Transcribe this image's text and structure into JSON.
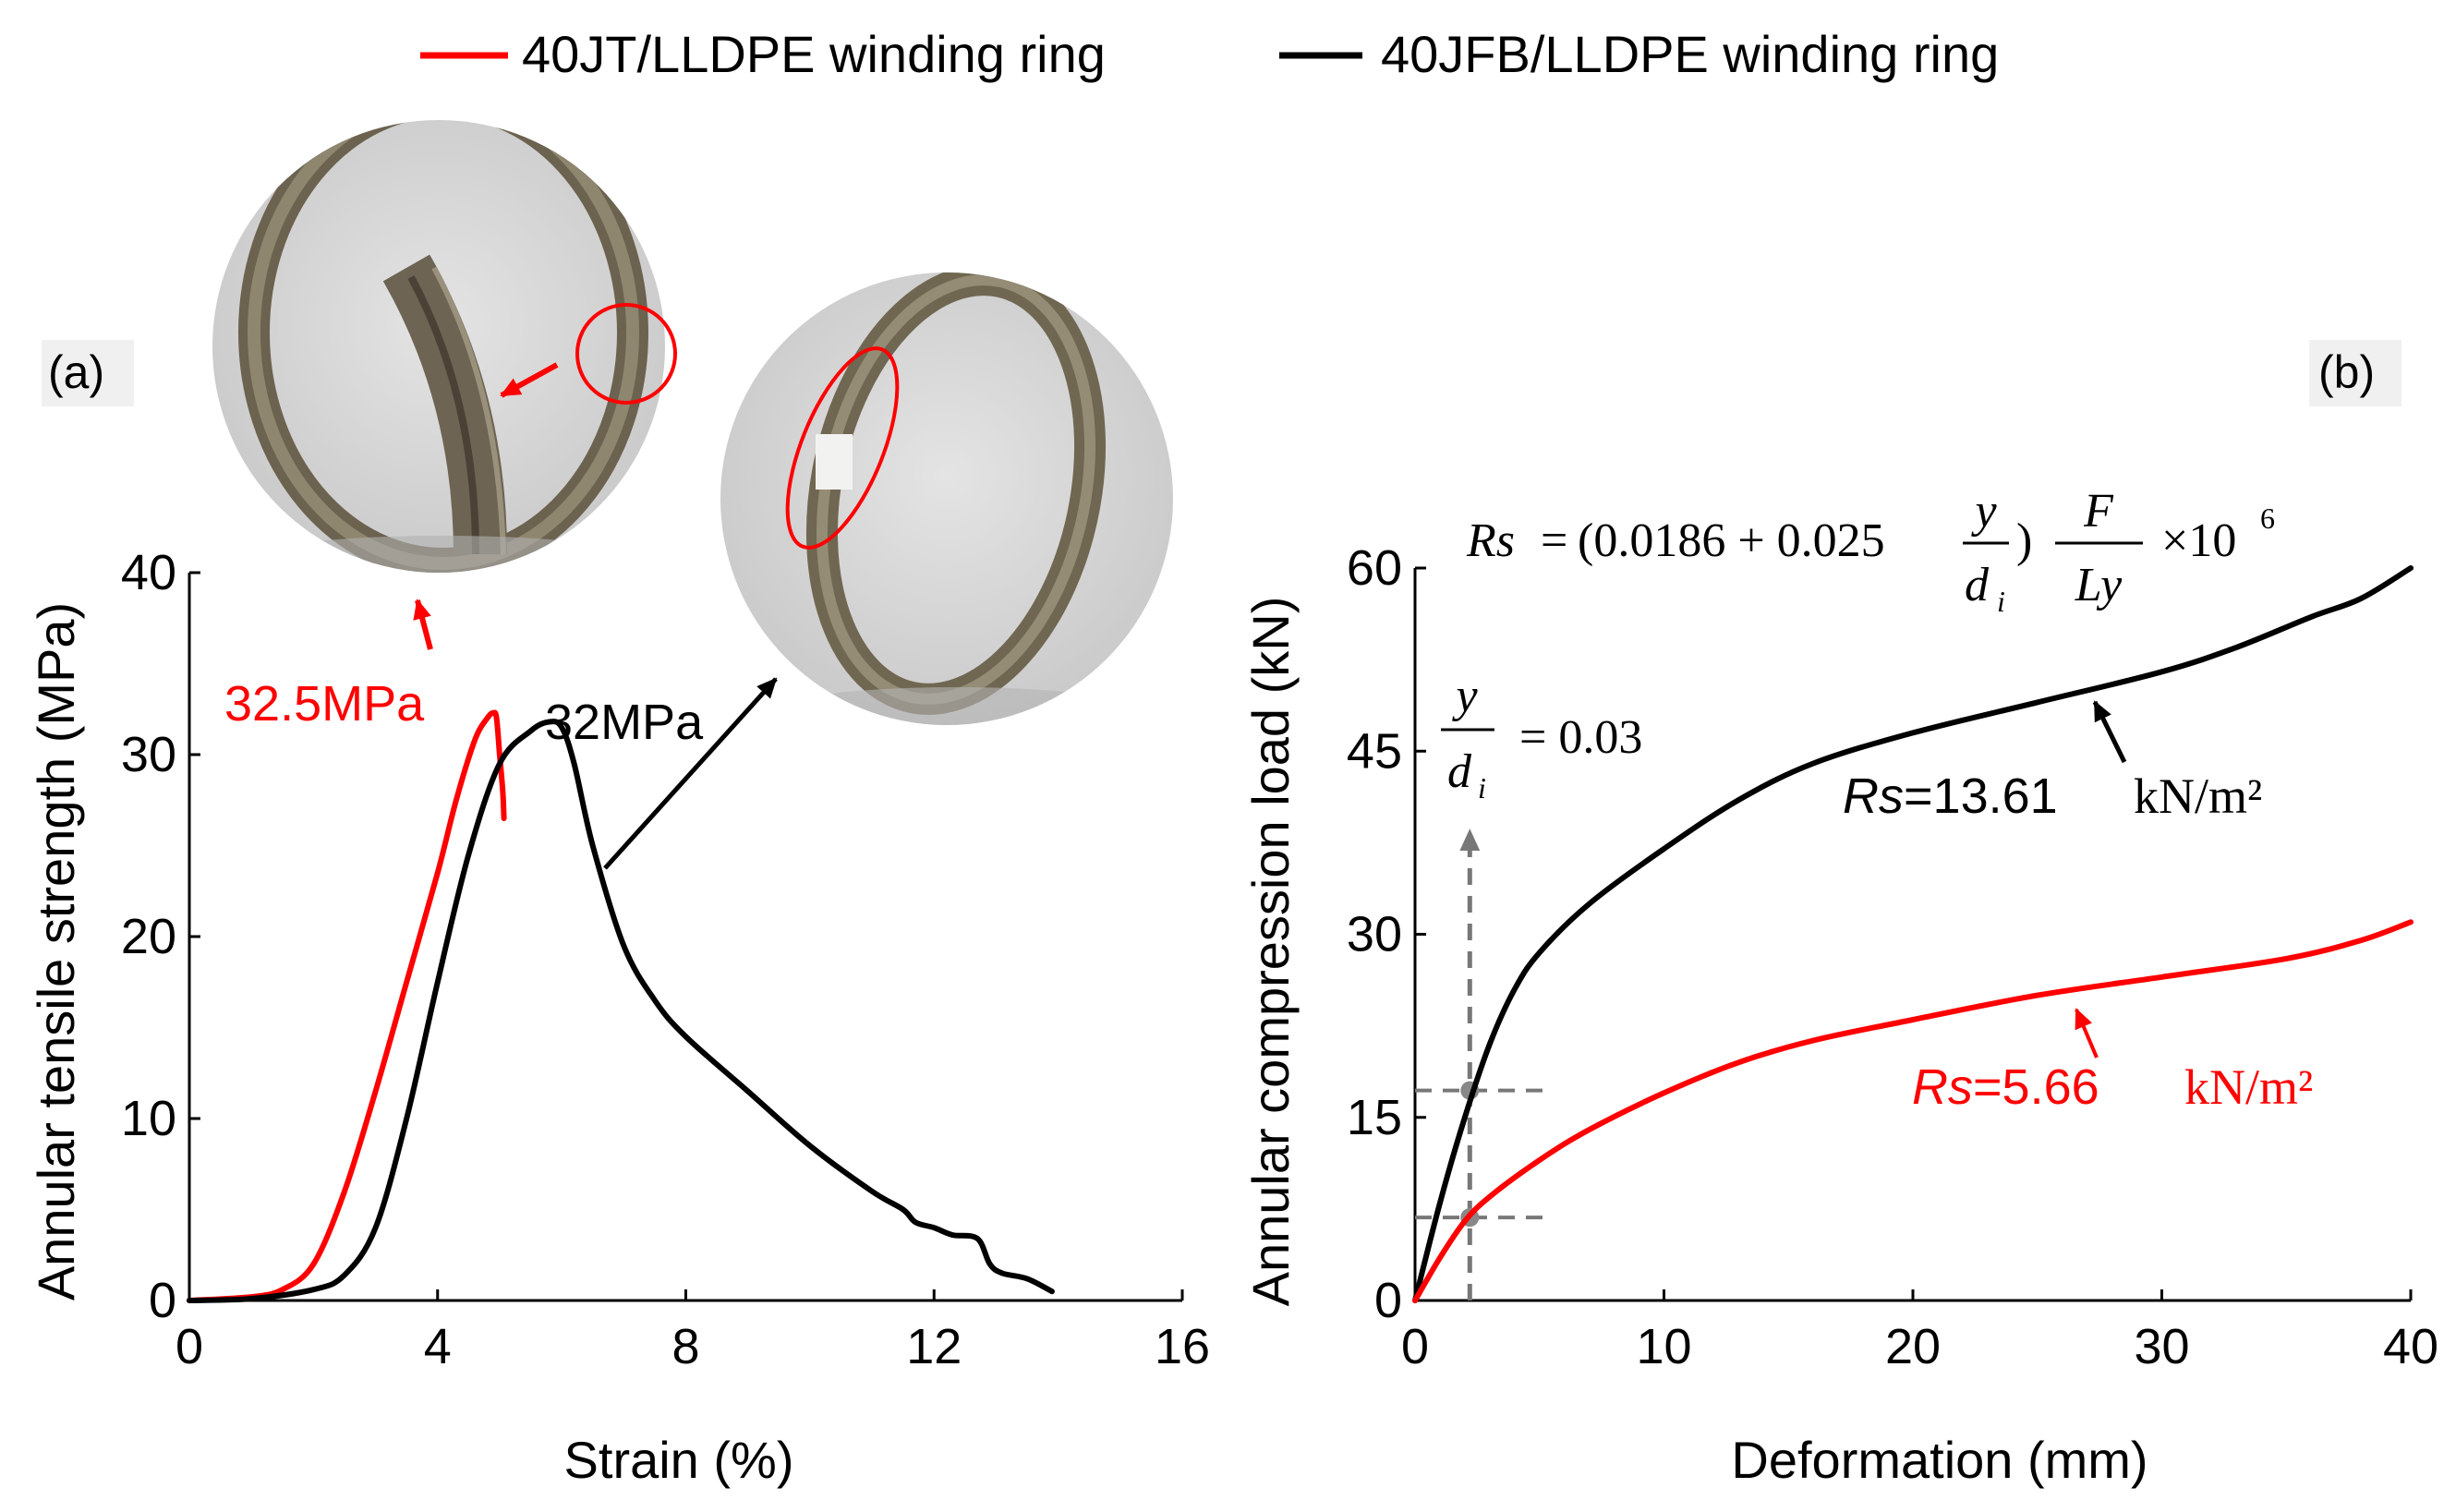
{
  "legend": [
    {
      "label": "40JT/LLDPE winding ring",
      "color": "#ff0000"
    },
    {
      "label": "40JFB/LLDPE winding ring",
      "color": "#000000"
    }
  ],
  "chart_data": [
    {
      "panel_label": "(a)",
      "type": "line",
      "xlabel": "Strain (%)",
      "ylabel": "Annular tensile strength (MPa)",
      "xlim": [
        0,
        16
      ],
      "ylim": [
        0,
        40
      ],
      "xticks": [
        "0",
        "4",
        "8",
        "12",
        "16"
      ],
      "yticks": [
        "0",
        "10",
        "20",
        "30",
        "40"
      ],
      "series": [
        {
          "name": "40JT/LLDPE winding ring",
          "color": "#ff0000",
          "x": [
            0,
            1,
            1.5,
            2,
            2.5,
            3,
            3.5,
            4,
            4.3,
            4.6,
            4.8,
            4.9,
            4.95,
            5.0,
            5.05,
            5.07
          ],
          "y": [
            0,
            0.2,
            0.6,
            2.0,
            6.0,
            11.5,
            17.5,
            23.5,
            27.5,
            30.8,
            32.0,
            32.3,
            32.0,
            30.0,
            28.0,
            26.5
          ]
        },
        {
          "name": "40JFB/LLDPE winding ring",
          "color": "#000000",
          "x": [
            0,
            1,
            2,
            2.5,
            3,
            3.5,
            4,
            4.5,
            5,
            5.5,
            5.8,
            6.0,
            6.2,
            6.5,
            7.0,
            7.5,
            8.0,
            9.0,
            10.0,
            11.0,
            11.5,
            11.7,
            12.0,
            12.3,
            12.7,
            12.9,
            13.1,
            13.5,
            13.9
          ],
          "y": [
            0,
            0.1,
            0.6,
            1.4,
            4.0,
            10.0,
            17.5,
            24.5,
            29.5,
            31.3,
            31.8,
            31.5,
            29.5,
            25.0,
            19.5,
            16.5,
            14.5,
            11.5,
            8.5,
            6.0,
            5.0,
            4.3,
            4.0,
            3.6,
            3.4,
            2.0,
            1.5,
            1.2,
            0.5
          ]
        }
      ],
      "annotations": [
        {
          "text": "32.5MPa",
          "color": "#ff0000"
        },
        {
          "text": "32MPa",
          "color": "#000000"
        }
      ]
    },
    {
      "panel_label": "(b)",
      "type": "line",
      "xlabel": "Deformation (mm)",
      "ylabel": "Annular compression load (kN)",
      "xlim": [
        0,
        40
      ],
      "ylim": [
        0,
        60
      ],
      "xticks": [
        "0",
        "10",
        "20",
        "30",
        "40"
      ],
      "yticks": [
        "0",
        "15",
        "30",
        "45",
        "60"
      ],
      "series": [
        {
          "name": "40JFB/LLDPE winding ring",
          "color": "#000000",
          "x": [
            0,
            1,
            2,
            3,
            4,
            5,
            7,
            10,
            13,
            16,
            20,
            25,
            30,
            33,
            36,
            38,
            40
          ],
          "y": [
            0,
            8,
            15,
            21,
            25.5,
            28.5,
            32.5,
            37.0,
            41.0,
            44.0,
            46.5,
            49.0,
            51.5,
            53.5,
            56.0,
            57.5,
            60.0
          ]
        },
        {
          "name": "40JT/LLDPE winding ring",
          "color": "#ff0000",
          "x": [
            0,
            1,
            2,
            3,
            5,
            7,
            10,
            13,
            16,
            20,
            25,
            30,
            35,
            38,
            40
          ],
          "y": [
            0,
            3.5,
            6.5,
            8.5,
            11.5,
            14.0,
            17.0,
            19.5,
            21.3,
            23.0,
            25.0,
            26.5,
            28.0,
            29.5,
            31.0
          ]
        }
      ],
      "guide": {
        "x": 2.2,
        "y_black": 17.2,
        "y_red": 6.8,
        "x_end": 5.5,
        "arrow_to_y": 38.5
      },
      "formula": {
        "lhs": "Rs",
        "eq": "=",
        "open": "(0.0186 + 0.025",
        "num": "y",
        "den": "d",
        "den_sub": "i",
        "close": ")",
        "num2": "F",
        "den2": "Ly",
        "times": "×10",
        "exp": "6"
      },
      "ratio": {
        "num": "y",
        "den": "d",
        "den_sub": "i",
        "rhs": "= 0.03"
      },
      "annotations": [
        {
          "rs": "Rs",
          "value": "=13.61",
          "unit": "kN/m²",
          "color": "#000000"
        },
        {
          "rs": "Rs",
          "value": "=5.66",
          "unit": "kN/m²",
          "color": "#ff0000"
        }
      ]
    }
  ]
}
